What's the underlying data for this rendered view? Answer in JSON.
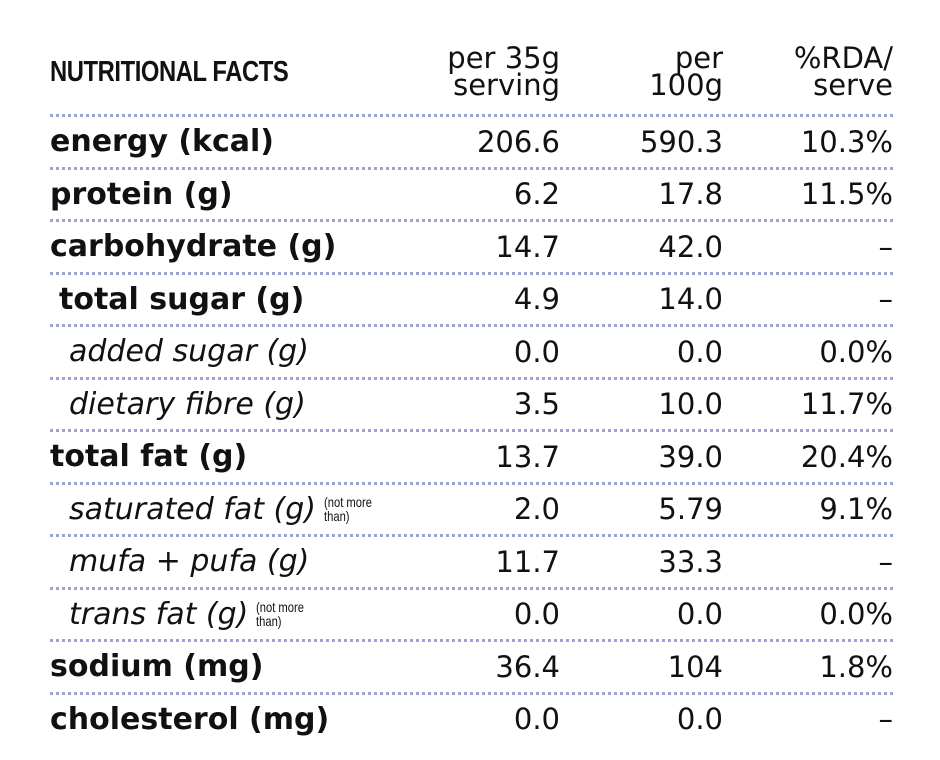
{
  "header": {
    "title": "NUTRITIONAL FACTS",
    "columns": [
      [
        "per 35g",
        "serving"
      ],
      [
        "per",
        "100g"
      ],
      [
        "%RDA/",
        "serve"
      ]
    ]
  },
  "rows": [
    {
      "label": "energy (kcal)",
      "values": [
        "206.6",
        "590.3",
        "10.3%"
      ]
    },
    {
      "label": "protein (g)",
      "values": [
        "6.2",
        "17.8",
        "11.5%"
      ]
    },
    {
      "label": "carbohydrate (g)",
      "values": [
        "14.7",
        "42.0",
        "–"
      ]
    },
    {
      "label": "total sugar (g)",
      "values": [
        "4.9",
        "14.0",
        "–"
      ]
    },
    {
      "label": "added sugar (g)",
      "values": [
        "0.0",
        "0.0",
        "0.0%"
      ]
    },
    {
      "label": "dietary fibre (g)",
      "values": [
        "3.5",
        "10.0",
        "11.7%"
      ]
    },
    {
      "label": "total fat (g)",
      "values": [
        "13.7",
        "39.0",
        "20.4%"
      ]
    },
    {
      "label": "saturated fat (g)",
      "note": [
        "(not more",
        "than)"
      ],
      "values": [
        "2.0",
        "5.79",
        "9.1%"
      ]
    },
    {
      "label": "mufa + pufa (g)",
      "values": [
        "11.7",
        "33.3",
        "–"
      ]
    },
    {
      "label": "trans fat (g)",
      "note": [
        "(not more",
        "than)"
      ],
      "values": [
        "0.0",
        "0.0",
        "0.0%"
      ]
    },
    {
      "label": "sodium (mg)",
      "values": [
        "36.4",
        "104",
        "1.8%"
      ]
    },
    {
      "label": "cholesterol (mg)",
      "values": [
        "0.0",
        "0.0",
        "–"
      ]
    }
  ]
}
